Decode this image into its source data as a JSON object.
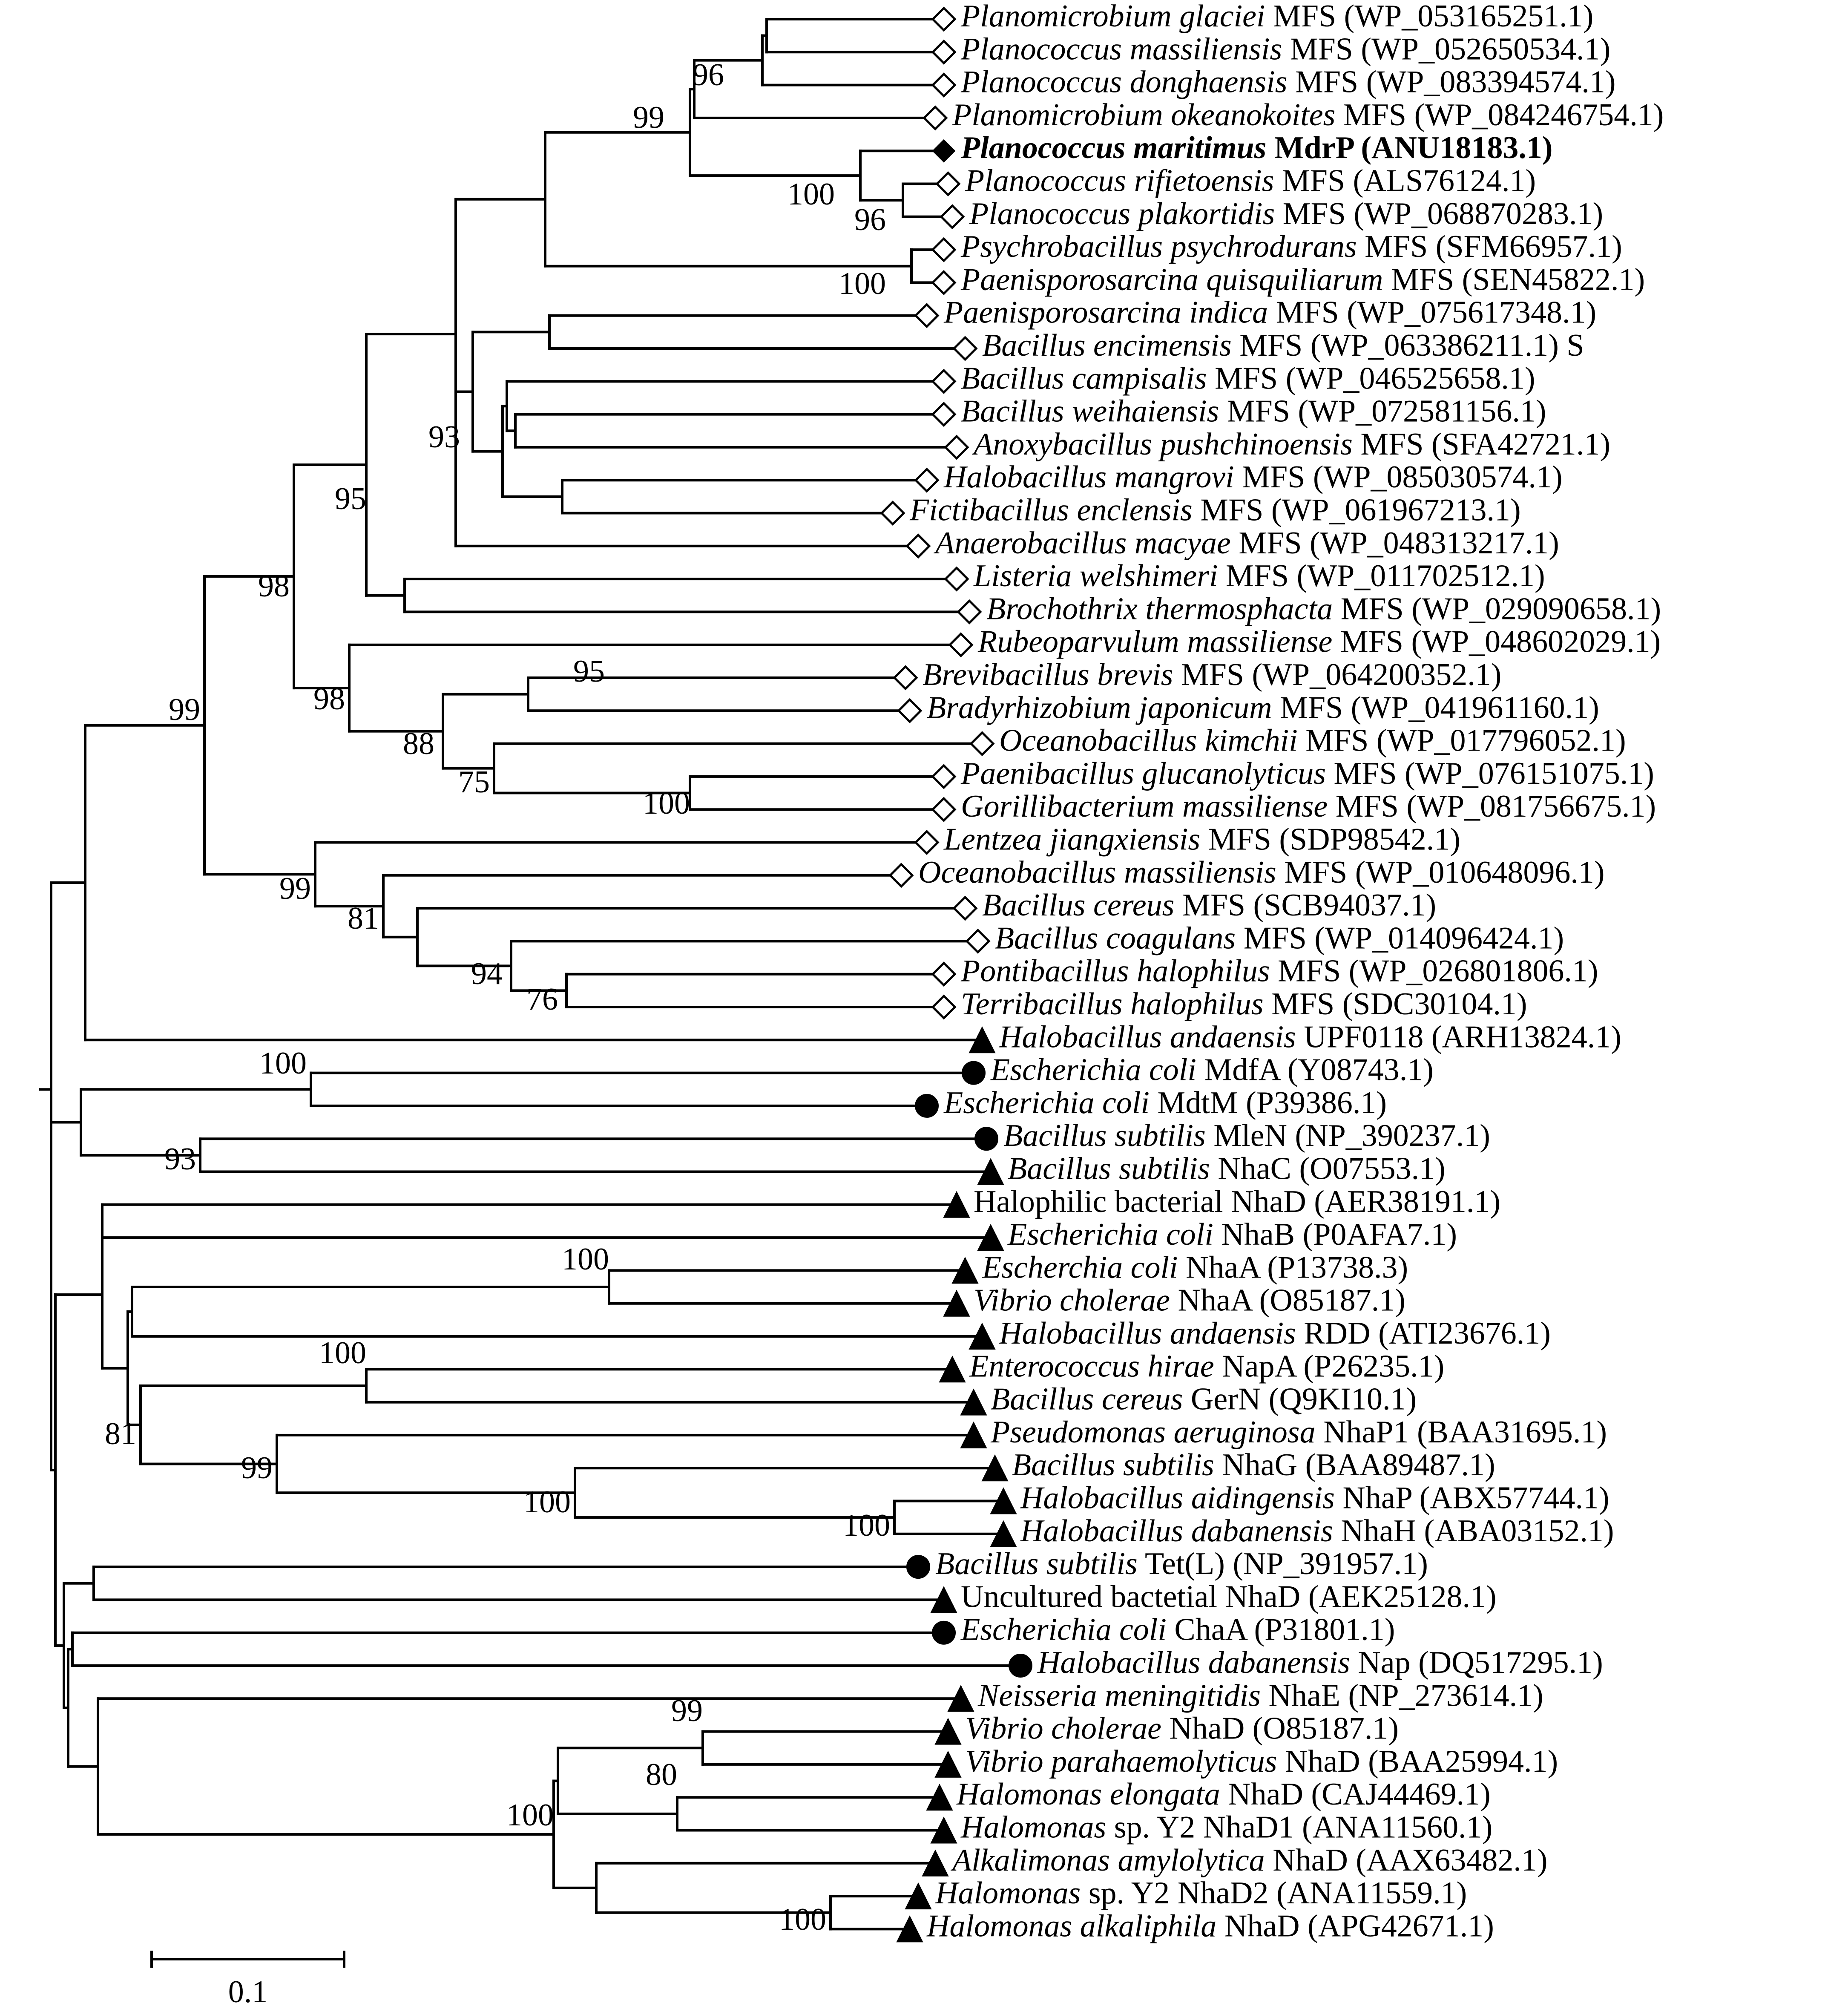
{
  "tree": {
    "leaves": [
      {
        "id": "L1",
        "species": "Planomicrobium glaciei",
        "suffix": " MFS (WP_053165251.1)",
        "marker": "open-diamond"
      },
      {
        "id": "L2",
        "species": "Planococcus massiliensis",
        "suffix": " MFS (WP_052650534.1)",
        "marker": "open-diamond"
      },
      {
        "id": "L3",
        "species": "Planococcus donghaensis",
        "suffix": " MFS (WP_083394574.1)",
        "marker": "open-diamond"
      },
      {
        "id": "L4",
        "species": "Planomicrobium okeanokoites",
        "suffix": " MFS (WP_084246754.1)",
        "marker": "open-diamond"
      },
      {
        "id": "L5",
        "species": "Planococcus maritimus",
        "suffix": " MdrP (ANU18183.1)",
        "marker": "filled-diamond",
        "bold": true
      },
      {
        "id": "L6",
        "species": "Planococcus rifietoensis",
        "suffix": " MFS (ALS76124.1)",
        "marker": "open-diamond"
      },
      {
        "id": "L7",
        "species": "Planococcus plakortidis",
        "suffix": " MFS (WP_068870283.1)",
        "marker": "open-diamond"
      },
      {
        "id": "L8",
        "species": "Psychrobacillus psychrodurans",
        "suffix": " MFS (SFM66957.1)",
        "marker": "open-diamond"
      },
      {
        "id": "L9",
        "species": "Paenisporosarcina quisquiliarum",
        "suffix": " MFS (SEN45822.1)",
        "marker": "open-diamond"
      },
      {
        "id": "L10",
        "species": "Paenisporosarcina indica",
        "suffix": " MFS (WP_075617348.1)",
        "marker": "open-diamond"
      },
      {
        "id": "L11",
        "species": "Bacillus encimensis",
        "suffix": " MFS (WP_063386211.1) S",
        "marker": "open-diamond"
      },
      {
        "id": "L12",
        "species": "Bacillus campisalis",
        "suffix": " MFS (WP_046525658.1)",
        "marker": "open-diamond"
      },
      {
        "id": "L13",
        "species": "Bacillus weihaiensis",
        "suffix": " MFS (WP_072581156.1)",
        "marker": "open-diamond"
      },
      {
        "id": "L14",
        "species": "Anoxybacillus pushchinoensis",
        "suffix": " MFS (SFA42721.1)",
        "marker": "open-diamond"
      },
      {
        "id": "L15",
        "species": "Halobacillus mangrovi",
        "suffix": " MFS (WP_085030574.1)",
        "marker": "open-diamond"
      },
      {
        "id": "L16",
        "species": "Fictibacillus enclensis",
        "suffix": " MFS (WP_061967213.1)",
        "marker": "open-diamond"
      },
      {
        "id": "L17",
        "species": "Anaerobacillus macyae",
        "suffix": " MFS (WP_048313217.1)",
        "marker": "open-diamond"
      },
      {
        "id": "L18",
        "species": "Listeria welshimeri",
        "suffix": " MFS (WP_011702512.1)",
        "marker": "open-diamond"
      },
      {
        "id": "L19",
        "species": "Brochothrix thermosphacta",
        "suffix": " MFS (WP_029090658.1)",
        "marker": "open-diamond"
      },
      {
        "id": "L20",
        "species": "Rubeoparvulum massiliense",
        "suffix": " MFS (WP_048602029.1)",
        "marker": "open-diamond"
      },
      {
        "id": "L21",
        "species": "Brevibacillus brevis",
        "suffix": " MFS (WP_064200352.1)",
        "marker": "open-diamond"
      },
      {
        "id": "L22",
        "species": "Bradyrhizobium japonicum",
        "suffix": " MFS (WP_041961160.1)",
        "marker": "open-diamond"
      },
      {
        "id": "L23",
        "species": "Oceanobacillus kimchii",
        "suffix": " MFS (WP_017796052.1)",
        "marker": "open-diamond"
      },
      {
        "id": "L24",
        "species": "Paenibacillus glucanolyticus",
        "suffix": " MFS (WP_076151075.1)",
        "marker": "open-diamond"
      },
      {
        "id": "L25",
        "species": "Gorillibacterium massiliense",
        "suffix": " MFS (WP_081756675.1)",
        "marker": "open-diamond"
      },
      {
        "id": "L26",
        "species": "Lentzea jiangxiensis",
        "suffix": " MFS (SDP98542.1)",
        "marker": "open-diamond"
      },
      {
        "id": "L27",
        "species": "Oceanobacillus massiliensis",
        "suffix": " MFS (WP_010648096.1)",
        "marker": "open-diamond"
      },
      {
        "id": "L28",
        "species": "Bacillus cereus",
        "suffix": " MFS (SCB94037.1)",
        "marker": "open-diamond"
      },
      {
        "id": "L29",
        "species": "Bacillus coagulans",
        "suffix": " MFS (WP_014096424.1)",
        "marker": "open-diamond"
      },
      {
        "id": "L30",
        "species": "Pontibacillus halophilus",
        "suffix": " MFS (WP_026801806.1)",
        "marker": "open-diamond"
      },
      {
        "id": "L31",
        "species": "Terribacillus halophilus",
        "suffix": " MFS (SDC30104.1)",
        "marker": "open-diamond"
      },
      {
        "id": "L32",
        "species": "Halobacillus andaensis",
        "suffix": " UPF0118 (ARH13824.1)",
        "marker": "triangle"
      },
      {
        "id": "L33",
        "species": "Escherichia coli",
        "suffix": " MdfA (Y08743.1)",
        "marker": "circle"
      },
      {
        "id": "L34",
        "species": "Escherichia coli",
        "suffix": " MdtM (P39386.1)",
        "marker": "circle"
      },
      {
        "id": "L35",
        "species": "Bacillus subtilis",
        "suffix": " MleN (NP_390237.1)",
        "marker": "circle"
      },
      {
        "id": "L36",
        "species": "Bacillus subtilis",
        "suffix": "  NhaC (O07553.1)",
        "marker": "triangle"
      },
      {
        "id": "L37",
        "species": "",
        "suffix": "Halophilic bacterial NhaD (AER38191.1)",
        "marker": "triangle"
      },
      {
        "id": "L38",
        "species": "Escherichia coli",
        "suffix": " NhaB (P0AFA7.1)",
        "marker": "triangle"
      },
      {
        "id": "L39",
        "species": "Escherchia coli",
        "suffix": " NhaA (P13738.3)",
        "marker": "triangle"
      },
      {
        "id": "L40",
        "species": "Vibrio cholerae",
        "suffix": " NhaA (O85187.1)",
        "marker": "triangle"
      },
      {
        "id": "L41",
        "species": "Halobacillus andaensis",
        "suffix": " RDD (ATI23676.1)",
        "marker": "triangle"
      },
      {
        "id": "L42",
        "species": "Enterococcus hirae",
        "suffix": " NapA (P26235.1)",
        "marker": "triangle"
      },
      {
        "id": "L43",
        "species": "Bacillus cereus",
        "suffix": " GerN (Q9KI10.1)",
        "marker": "triangle"
      },
      {
        "id": "L44",
        "species": "Pseudomonas aeruginosa",
        "suffix": " NhaP1 (BAA31695.1)",
        "marker": "triangle"
      },
      {
        "id": "L45",
        "species": "Bacillus subtilis",
        "suffix": " NhaG (BAA89487.1)",
        "marker": "triangle"
      },
      {
        "id": "L46",
        "species": "Halobacillus aidingensis",
        "suffix": " NhaP (ABX57744.1)",
        "marker": "triangle"
      },
      {
        "id": "L47",
        "species": "Halobacillus dabanensis",
        "suffix": " NhaH (ABA03152.1)",
        "marker": "triangle"
      },
      {
        "id": "L48",
        "species": "Bacillus subtilis",
        "suffix": " Tet(L) (NP_391957.1)",
        "marker": "circle"
      },
      {
        "id": "L49",
        "species": "",
        "suffix": "Uncultured bactetial NhaD (AEK25128.1)",
        "marker": "triangle"
      },
      {
        "id": "L50",
        "species": "Escherichia coli",
        "suffix": " ChaA (P31801.1)",
        "marker": "circle"
      },
      {
        "id": "L51",
        "species": "Halobacillus dabanensis",
        "suffix": " Nap (DQ517295.1)",
        "marker": "circle"
      },
      {
        "id": "L52",
        "species": "Neisseria meningitidis",
        "suffix": " NhaE (NP_273614.1)",
        "marker": "triangle"
      },
      {
        "id": "L53",
        "species": "Vibrio cholerae",
        "suffix": " NhaD (O85187.1)",
        "marker": "triangle"
      },
      {
        "id": "L54",
        "species": "Vibrio parahaemolyticus",
        "suffix": " NhaD (BAA25994.1)",
        "marker": "triangle"
      },
      {
        "id": "L55",
        "species": "Halomonas elongata",
        "suffix": " NhaD (CAJ44469.1)",
        "marker": "triangle"
      },
      {
        "id": "L56",
        "species": "Halomonas",
        "suffix": " sp. Y2 NhaD1 (ANA11560.1)",
        "marker": "triangle"
      },
      {
        "id": "L57",
        "species": "Alkalimonas amylolytica",
        "suffix": " NhaD (AAX63482.1)",
        "marker": "triangle"
      },
      {
        "id": "L58",
        "species": "Halomonas",
        "suffix": " sp. Y2 NhaD2 (ANA11559.1)",
        "marker": "triangle"
      },
      {
        "id": "L59",
        "species": "Halomonas alkaliphila",
        "suffix": " NhaD (APG42671.1)",
        "marker": "triangle"
      }
    ],
    "bootstrap": [
      "96",
      "99",
      "100",
      "96",
      "100",
      "93",
      "95",
      "98",
      "99",
      "98",
      "95",
      "88",
      "75",
      "100",
      "99",
      "81",
      "94",
      "76",
      "100",
      "93",
      "100",
      "100",
      "81",
      "99",
      "100",
      "100",
      "99",
      "80",
      "100",
      "100"
    ]
  },
  "scale_bar": {
    "label": "0.1"
  }
}
